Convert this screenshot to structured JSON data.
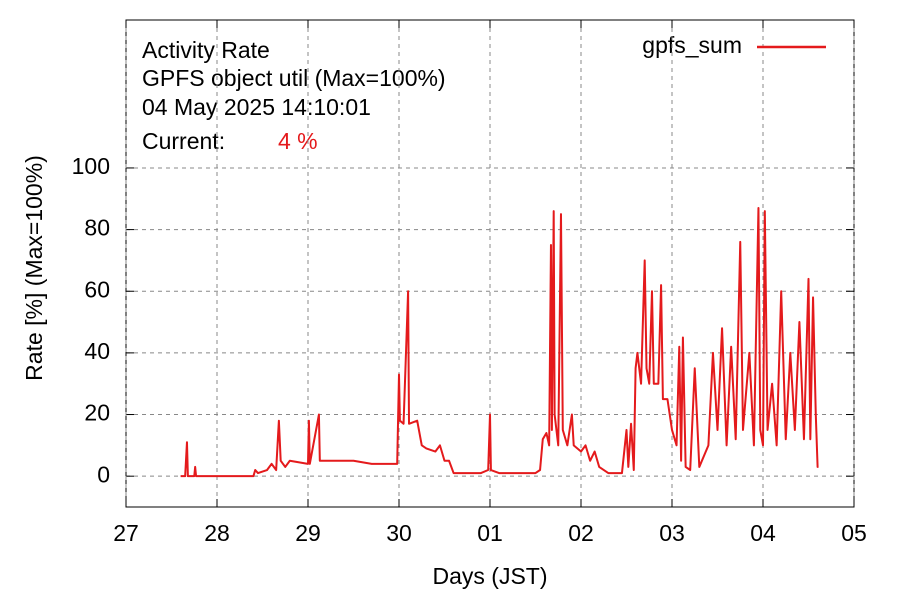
{
  "chart_data": {
    "type": "line",
    "title": "Activity Rate",
    "subtitle": "GPFS object util (Max=100%)",
    "timestamp": "04 May 2025 14:10:01",
    "current_label": "Current:",
    "current_value": "4 %",
    "x_label": "Days (JST)",
    "y_label": "Rate [%]  (Max=100%)",
    "xlim": [
      0,
      8
    ],
    "xticks": [
      {
        "value": 0,
        "label": "27"
      },
      {
        "value": 1,
        "label": "28"
      },
      {
        "value": 2,
        "label": "29"
      },
      {
        "value": 3,
        "label": "30"
      },
      {
        "value": 4,
        "label": "01"
      },
      {
        "value": 5,
        "label": "02"
      },
      {
        "value": 6,
        "label": "03"
      },
      {
        "value": 7,
        "label": "04"
      },
      {
        "value": 8,
        "label": "05"
      }
    ],
    "ylim": [
      -10,
      148
    ],
    "yticks": [
      0,
      20,
      40,
      60,
      80,
      100
    ],
    "grid": true,
    "legend": "top-right",
    "x": [
      0.6,
      0.65,
      0.67,
      0.68,
      0.75,
      0.76,
      0.77,
      1.0,
      1.4,
      1.42,
      1.45,
      1.55,
      1.6,
      1.65,
      1.68,
      1.7,
      1.75,
      1.8,
      2.0,
      2.01,
      2.02,
      2.12,
      2.13,
      2.3,
      2.5,
      2.7,
      2.9,
      2.98,
      3.0,
      3.01,
      3.05,
      3.1,
      3.11,
      3.2,
      3.25,
      3.3,
      3.4,
      3.45,
      3.5,
      3.55,
      3.6,
      3.9,
      3.98,
      4.0,
      4.01,
      4.1,
      4.5,
      4.55,
      4.58,
      4.62,
      4.65,
      4.67,
      4.68,
      4.7,
      4.71,
      4.75,
      4.78,
      4.8,
      4.85,
      4.9,
      4.92,
      5.0,
      5.05,
      5.1,
      5.15,
      5.2,
      5.3,
      5.45,
      5.5,
      5.52,
      5.55,
      5.58,
      5.6,
      5.62,
      5.66,
      5.7,
      5.72,
      5.75,
      5.78,
      5.8,
      5.85,
      5.88,
      5.9,
      5.95,
      6.0,
      6.05,
      6.08,
      6.1,
      6.12,
      6.15,
      6.2,
      6.25,
      6.3,
      6.4,
      6.45,
      6.5,
      6.55,
      6.6,
      6.65,
      6.7,
      6.75,
      6.78,
      6.85,
      6.9,
      6.95,
      6.97,
      7.0,
      7.02,
      7.05,
      7.1,
      7.15,
      7.2,
      7.25,
      7.3,
      7.35,
      7.4,
      7.45,
      7.5,
      7.52,
      7.55,
      7.58,
      7.6,
      7.61
    ],
    "series": [
      {
        "name": "gpfs_sum",
        "color": "#e41a1c",
        "values": [
          0,
          0,
          11,
          0,
          0,
          3,
          0,
          0,
          0,
          2,
          1,
          2,
          4,
          2,
          18,
          5,
          3,
          5,
          4,
          18,
          4,
          20,
          5,
          5,
          5,
          4,
          4,
          4,
          33,
          18,
          17,
          60,
          17,
          18,
          10,
          9,
          8,
          10,
          5,
          5,
          1,
          1,
          2,
          20,
          2,
          1,
          1,
          2,
          12,
          14,
          10,
          75,
          15,
          86,
          20,
          10,
          85,
          15,
          10,
          20,
          10,
          8,
          10,
          5,
          8,
          3,
          1,
          1,
          15,
          3,
          17,
          2,
          35,
          40,
          30,
          70,
          35,
          30,
          60,
          30,
          30,
          62,
          25,
          25,
          15,
          10,
          42,
          5,
          45,
          3,
          2,
          35,
          3,
          10,
          40,
          15,
          48,
          10,
          42,
          12,
          76,
          15,
          40,
          10,
          87,
          15,
          10,
          86,
          15,
          30,
          10,
          60,
          12,
          40,
          15,
          50,
          12,
          64,
          12,
          58,
          20,
          3,
          3
        ]
      }
    ]
  }
}
